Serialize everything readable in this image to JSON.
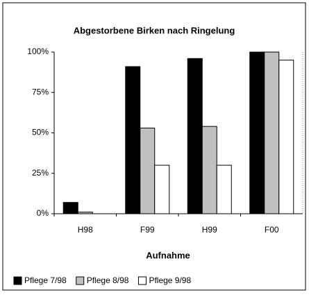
{
  "chart_data": {
    "type": "bar",
    "title": "Abgestorbene Birken nach Ringelung",
    "x_label": "Aufnahme",
    "categories": [
      "H98",
      "F99",
      "H99",
      "F00"
    ],
    "series": [
      {
        "name": "Pflege 7/98",
        "color": "#000000",
        "values": [
          7,
          91,
          96,
          100
        ]
      },
      {
        "name": "Pflege 8/98",
        "color": "#c0c0c0",
        "values": [
          1,
          53,
          54,
          100
        ]
      },
      {
        "name": "Pflege 9/98",
        "color": "#ffffff",
        "values": [
          0,
          30,
          30,
          95
        ]
      }
    ],
    "ylim": [
      0,
      100
    ],
    "yticks": [
      {
        "value": 0,
        "label": "0%"
      },
      {
        "value": 25,
        "label": "25%"
      },
      {
        "value": 50,
        "label": "50%"
      },
      {
        "value": 75,
        "label": "75%"
      },
      {
        "value": 100,
        "label": "100%"
      }
    ],
    "legend": "bottom"
  }
}
